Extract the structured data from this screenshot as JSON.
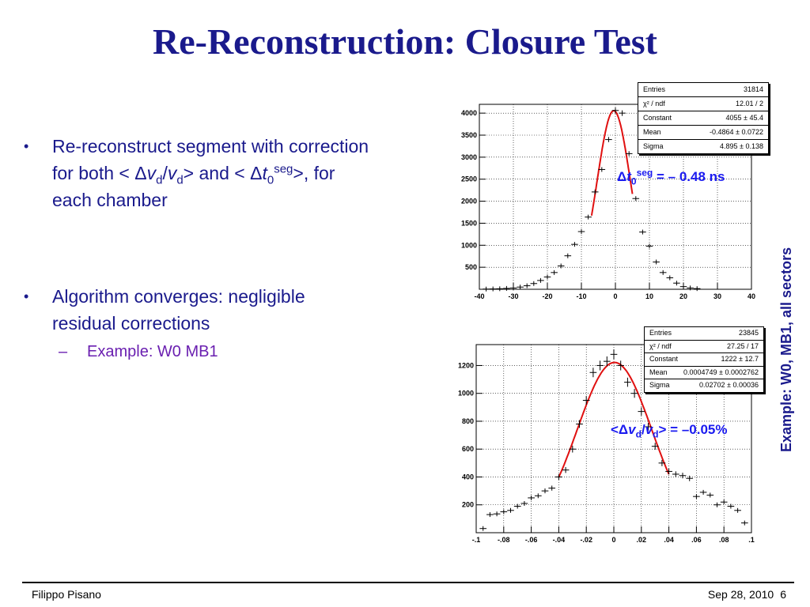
{
  "title": "Re-Reconstruction: Closure Test",
  "bullets": {
    "b1_line1": "Re-reconstruct segment with correction",
    "b1_pre": "for both < ",
    "b1_delta": "Δ",
    "b1_v": "v",
    "b1_d": "d",
    "b1_slash": "/",
    "b1_v2": "v",
    "b1_d2": "d",
    "b1_mid": "> and < ",
    "b1_delta2": "Δ",
    "b1_t": "t",
    "b1_0": "0",
    "b1_seg": "seg",
    "b1_post": ">, for",
    "b1_line3": "each chamber",
    "b2_line1": "Algorithm converges: negligible",
    "b2_line2": "residual corrections",
    "sub1": "Example: W0 MB1",
    "bullet_symbol": "•",
    "dash_symbol": "–"
  },
  "annotations": {
    "t0_delta": "Δ",
    "t0_t": "t",
    "t0_0": "0",
    "t0_seg": "seg",
    "t0_value": " = – 0.48 ns",
    "vd_pre": "<Δ",
    "vd_v": "v",
    "vd_d": "d",
    "vd_slash": "/",
    "vd_v2": "v",
    "vd_d2": "d",
    "vd_value": "> = –0.05%"
  },
  "side_label": "Example: W0, MB1, all sectors",
  "footer": {
    "author": "Filippo Pisano",
    "date": "Sep 28, 2010",
    "page": "6"
  },
  "stats1": [
    {
      "k": "Entries",
      "v": "31814"
    },
    {
      "k": "χ² / ndf",
      "v": "12.01 / 2"
    },
    {
      "k": "Constant",
      "v": "4055 ± 45.4"
    },
    {
      "k": "Mean",
      "v": "-0.4864 ± 0.0722"
    },
    {
      "k": "Sigma",
      "v": "4.895 ± 0.138"
    }
  ],
  "stats2": [
    {
      "k": "Entries",
      "v": "23845"
    },
    {
      "k": "χ² / ndf",
      "v": "27.25 / 17"
    },
    {
      "k": "Constant",
      "v": "1222 ± 12.7"
    },
    {
      "k": "Mean",
      "v": "0.0004749 ± 0.0002762"
    },
    {
      "k": "Sigma",
      "v": "0.02702 ± 0.00036"
    }
  ],
  "chart_data": [
    {
      "type": "scatter",
      "title": "",
      "xlabel": "",
      "ylabel": "",
      "xlim": [
        -40,
        40
      ],
      "ylim": [
        0,
        4200
      ],
      "xticks": [
        -40,
        -30,
        -20,
        -10,
        0,
        10,
        20,
        30,
        40
      ],
      "yticks": [
        500,
        1000,
        1500,
        2000,
        2500,
        3000,
        3500,
        4000
      ],
      "grid": true,
      "x": [
        -38,
        -36,
        -34,
        -32,
        -30,
        -28,
        -26,
        -24,
        -22,
        -20,
        -18,
        -16,
        -14,
        -12,
        -10,
        -8,
        -6,
        -4,
        -2,
        0,
        2,
        4,
        6,
        8,
        10,
        12,
        14,
        16,
        18,
        20,
        22,
        24
      ],
      "y": [
        5,
        8,
        12,
        20,
        30,
        50,
        80,
        130,
        200,
        280,
        380,
        530,
        760,
        1020,
        1310,
        1640,
        2210,
        2720,
        3400,
        4060,
        4000,
        3080,
        2060,
        1300,
        980,
        620,
        380,
        260,
        140,
        60,
        30,
        15
      ],
      "fit": {
        "function": "gaus",
        "constant": 4055,
        "mean": -0.4864,
        "sigma": 4.895,
        "range": [
          -7,
          5
        ]
      },
      "series_color": "#000000",
      "fit_color": "#e01010"
    },
    {
      "type": "scatter",
      "title": "",
      "xlabel": "",
      "ylabel": "",
      "xlim": [
        -0.1,
        0.1
      ],
      "ylim": [
        0,
        1350
      ],
      "xticks": [
        -0.1,
        -0.08,
        -0.06,
        -0.04,
        -0.02,
        0,
        0.02,
        0.04,
        0.06,
        0.08,
        0.1
      ],
      "yticks": [
        200,
        400,
        600,
        800,
        1000,
        1200
      ],
      "grid": true,
      "x": [
        -0.095,
        -0.09,
        -0.085,
        -0.08,
        -0.075,
        -0.07,
        -0.065,
        -0.06,
        -0.055,
        -0.05,
        -0.045,
        -0.04,
        -0.035,
        -0.03,
        -0.025,
        -0.02,
        -0.015,
        -0.01,
        -0.005,
        0,
        0.005,
        0.01,
        0.015,
        0.02,
        0.025,
        0.03,
        0.035,
        0.04,
        0.045,
        0.05,
        0.055,
        0.06,
        0.065,
        0.07,
        0.075,
        0.08,
        0.085,
        0.09,
        0.095
      ],
      "y": [
        30,
        130,
        135,
        150,
        160,
        190,
        210,
        250,
        265,
        300,
        320,
        400,
        450,
        600,
        780,
        950,
        1150,
        1200,
        1230,
        1280,
        1200,
        1080,
        1000,
        870,
        760,
        620,
        500,
        440,
        420,
        410,
        390,
        260,
        290,
        270,
        200,
        220,
        190,
        160,
        70
      ],
      "fit": {
        "function": "gaus",
        "constant": 1222,
        "mean": 0.0004749,
        "sigma": 0.02702,
        "range": [
          -0.04,
          0.04
        ]
      },
      "series_color": "#000000",
      "fit_color": "#e01010"
    }
  ]
}
